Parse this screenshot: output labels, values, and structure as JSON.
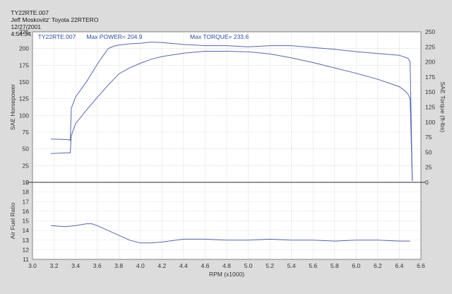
{
  "header": {
    "file": "TY22RTE.007",
    "vehicle": "Jeff Moskovitz' Toyota 22RTERO",
    "date": "12/27/2001",
    "time": "4:54:34 PM"
  },
  "colors": {
    "background": "#dcdcdc",
    "plot_bg": "#ffffff",
    "curve": "#5566b0",
    "info_text": "#2b4ea3"
  },
  "chart_data": [
    {
      "type": "line",
      "title": "",
      "info": {
        "run": "TY22RTE.007",
        "max_power": "Max POWER= 204.9",
        "max_torque": "Max TORQUE= 233.6"
      },
      "xlabel": "RPM (x1000)",
      "xlim": [
        3.0,
        6.6
      ],
      "x_ticks": [
        "3.0",
        "3.2",
        "3.4",
        "3.6",
        "3.8",
        "4.0",
        "4.2",
        "4.4",
        "4.6",
        "4.8",
        "5.0",
        "5.2",
        "5.4",
        "5.6",
        "5.8",
        "6.0",
        "6.2",
        "6.4",
        "6.6"
      ],
      "ylabel": "SAE Horsepower",
      "ylim": [
        0,
        225
      ],
      "y_ticks": [
        "0",
        "25",
        "50",
        "75",
        "100",
        "125",
        "150",
        "175",
        "200",
        "225"
      ],
      "y2label": "SAE Torque (ft-lbs)",
      "y2lim": [
        0,
        250
      ],
      "y2_ticks": [
        "0",
        "25",
        "50",
        "75",
        "100",
        "125",
        "150",
        "175",
        "200",
        "225",
        "250"
      ],
      "grid": true,
      "series": [
        {
          "axis": "left",
          "x": [
            3.17,
            3.32,
            3.35,
            3.36,
            3.4,
            3.5,
            3.6,
            3.7,
            3.8,
            3.9,
            4.0,
            4.1,
            4.2,
            4.4,
            4.6,
            4.8,
            5.0,
            5.2,
            5.4,
            5.6,
            5.8,
            6.0,
            6.2,
            6.4,
            6.45,
            6.48,
            6.5,
            6.52
          ],
          "y": [
            43,
            44,
            44,
            70,
            88,
            108,
            127,
            145,
            162,
            171,
            178,
            184,
            188,
            193,
            196,
            196,
            195,
            192,
            186,
            179,
            171,
            163,
            154,
            143,
            137,
            132,
            125,
            2
          ]
        },
        {
          "axis": "right",
          "x": [
            3.17,
            3.32,
            3.35,
            3.36,
            3.4,
            3.5,
            3.6,
            3.7,
            3.75,
            3.8,
            3.9,
            4.0,
            4.1,
            4.2,
            4.4,
            4.6,
            4.8,
            5.0,
            5.2,
            5.4,
            5.6,
            5.8,
            6.0,
            6.2,
            6.4,
            6.48,
            6.5,
            6.52
          ],
          "y": [
            72,
            71,
            70,
            123,
            142,
            167,
            196,
            222,
            226,
            228,
            230,
            231,
            233,
            232,
            229,
            227,
            227,
            225,
            227,
            227,
            224,
            221,
            217,
            214,
            211,
            206,
            200,
            4
          ]
        }
      ]
    },
    {
      "type": "line",
      "title": "",
      "xlabel": "RPM (x1000)",
      "xlim": [
        3.0,
        6.6
      ],
      "ylabel": "Air Fuel Ratio",
      "ylim": [
        11,
        19
      ],
      "y_ticks": [
        "11",
        "12",
        "13",
        "14",
        "15",
        "16",
        "17",
        "18",
        "19"
      ],
      "grid": true,
      "series": [
        {
          "x": [
            3.17,
            3.3,
            3.4,
            3.5,
            3.55,
            3.6,
            3.7,
            3.8,
            3.9,
            4.0,
            4.1,
            4.2,
            4.4,
            4.6,
            4.8,
            5.0,
            5.2,
            5.4,
            5.6,
            5.8,
            6.0,
            6.2,
            6.4,
            6.5
          ],
          "y": [
            14.5,
            14.4,
            14.5,
            14.7,
            14.7,
            14.5,
            14.0,
            13.5,
            13.0,
            12.7,
            12.7,
            12.8,
            13.1,
            13.1,
            13.0,
            13.0,
            13.1,
            13.0,
            13.0,
            12.9,
            13.0,
            13.0,
            12.9,
            12.9
          ]
        }
      ]
    }
  ]
}
